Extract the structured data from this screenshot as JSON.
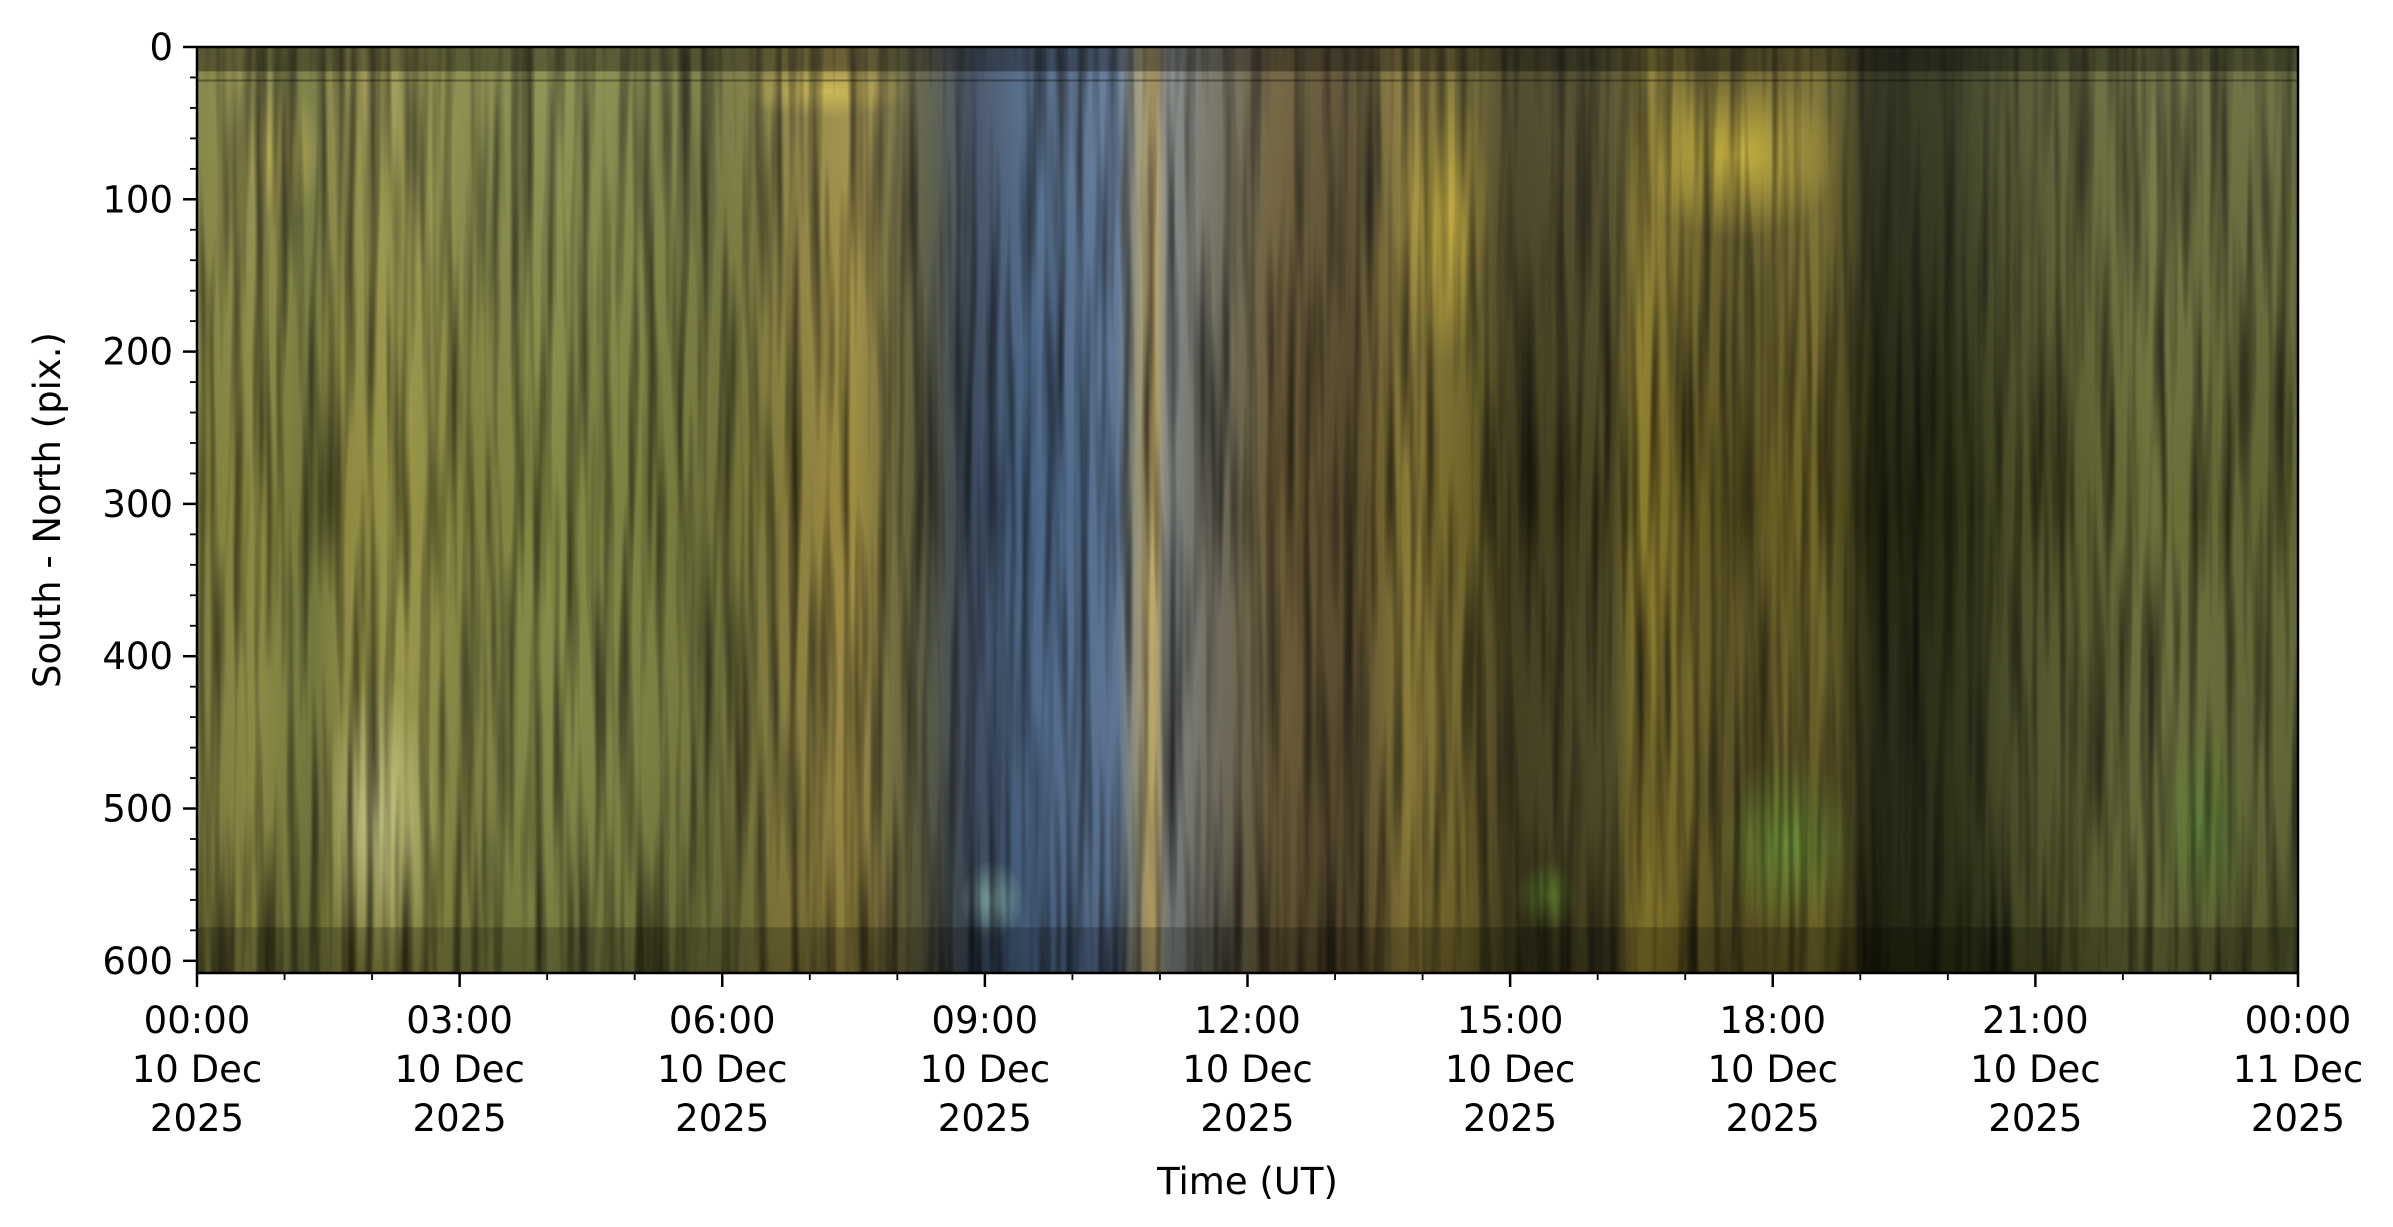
{
  "chart_data": {
    "type": "heatmap",
    "title": "",
    "xlabel": "Time (UT)",
    "ylabel": "South - North (pix.)",
    "x_range": [
      "2025-12-10T00:00",
      "2025-12-11T00:00"
    ],
    "ylim": [
      608,
      0
    ],
    "y_inverted": true,
    "grid": false,
    "x_ticks": [
      {
        "time": "2025-12-10T00:00",
        "line1": "00:00",
        "line2": "10 Dec",
        "line3": "2025"
      },
      {
        "time": "2025-12-10T03:00",
        "line1": "03:00",
        "line2": "10 Dec",
        "line3": "2025"
      },
      {
        "time": "2025-12-10T06:00",
        "line1": "06:00",
        "line2": "10 Dec",
        "line3": "2025"
      },
      {
        "time": "2025-12-10T09:00",
        "line1": "09:00",
        "line2": "10 Dec",
        "line3": "2025"
      },
      {
        "time": "2025-12-10T12:00",
        "line1": "12:00",
        "line2": "10 Dec",
        "line3": "2025"
      },
      {
        "time": "2025-12-10T15:00",
        "line1": "15:00",
        "line2": "10 Dec",
        "line3": "2025"
      },
      {
        "time": "2025-12-10T18:00",
        "line1": "18:00",
        "line2": "10 Dec",
        "line3": "2025"
      },
      {
        "time": "2025-12-10T21:00",
        "line1": "21:00",
        "line2": "10 Dec",
        "line3": "2025"
      },
      {
        "time": "2025-12-11T00:00",
        "line1": "00:00",
        "line2": "11 Dec",
        "line3": "2025"
      }
    ],
    "y_ticks": [
      0,
      100,
      200,
      300,
      400,
      500,
      600
    ],
    "color_bands": [
      {
        "start": "2025-12-10T00:00",
        "color": "#7d7d3c"
      },
      {
        "start": "2025-12-10T00:40",
        "color": "#8e8a42"
      },
      {
        "start": "2025-12-10T01:20",
        "color": "#6f7538"
      },
      {
        "start": "2025-12-10T01:40",
        "color": "#8c8840"
      },
      {
        "start": "2025-12-10T02:20",
        "color": "#9a9648"
      },
      {
        "start": "2025-12-10T03:10",
        "color": "#7f813f"
      },
      {
        "start": "2025-12-10T04:00",
        "color": "#858a45"
      },
      {
        "start": "2025-12-10T05:00",
        "color": "#7d8140"
      },
      {
        "start": "2025-12-10T06:00",
        "color": "#707238"
      },
      {
        "start": "2025-12-10T06:50",
        "color": "#8a7e3c"
      },
      {
        "start": "2025-12-10T07:30",
        "color": "#9e8c40"
      },
      {
        "start": "2025-12-10T08:10",
        "color": "#5f5d3a"
      },
      {
        "start": "2025-12-10T08:50",
        "color": "#39475a"
      },
      {
        "start": "2025-12-10T09:30",
        "color": "#4a6688"
      },
      {
        "start": "2025-12-10T10:30",
        "color": "#5b7393"
      },
      {
        "start": "2025-12-10T10:55",
        "color": "#bfa863"
      },
      {
        "start": "2025-12-10T11:05",
        "color": "#7f8583"
      },
      {
        "start": "2025-12-10T11:40",
        "color": "#6d6a5a"
      },
      {
        "start": "2025-12-10T12:20",
        "color": "#6a5a34"
      },
      {
        "start": "2025-12-10T13:10",
        "color": "#514428"
      },
      {
        "start": "2025-12-10T13:50",
        "color": "#8b7a35"
      },
      {
        "start": "2025-12-10T14:30",
        "color": "#6e6328"
      },
      {
        "start": "2025-12-10T15:00",
        "color": "#403b1c"
      },
      {
        "start": "2025-12-10T16:10",
        "color": "#4c4722"
      },
      {
        "start": "2025-12-10T16:30",
        "color": "#8d7d2a"
      },
      {
        "start": "2025-12-10T17:30",
        "color": "#5a5120"
      },
      {
        "start": "2025-12-10T18:30",
        "color": "#756a28"
      },
      {
        "start": "2025-12-10T19:10",
        "color": "#22240f"
      },
      {
        "start": "2025-12-10T20:00",
        "color": "#2c2f14"
      },
      {
        "start": "2025-12-10T20:40",
        "color": "#474a24"
      },
      {
        "start": "2025-12-10T21:40",
        "color": "#5f6230"
      },
      {
        "start": "2025-12-10T22:20",
        "color": "#6e713a"
      },
      {
        "start": "2025-12-10T23:20",
        "color": "#626633"
      }
    ],
    "highlights": [
      {
        "start": "2025-12-10T01:30",
        "end": "2025-12-10T02:40",
        "y_from": 420,
        "y_to": 600,
        "color": "#e7e7a0"
      },
      {
        "start": "2025-12-10T00:40",
        "end": "2025-12-10T01:20",
        "y_from": 30,
        "y_to": 110,
        "color": "#c9b54f"
      },
      {
        "start": "2025-12-10T06:20",
        "end": "2025-12-10T08:00",
        "y_from": 18,
        "y_to": 40,
        "color": "#d9c24a"
      },
      {
        "start": "2025-12-10T08:50",
        "end": "2025-12-10T09:20",
        "y_from": 540,
        "y_to": 580,
        "color": "#9fd3c4"
      },
      {
        "start": "2025-12-10T13:50",
        "end": "2025-12-10T14:40",
        "y_from": 20,
        "y_to": 200,
        "color": "#e0c43a"
      },
      {
        "start": "2025-12-10T16:30",
        "end": "2025-12-10T18:40",
        "y_from": 20,
        "y_to": 120,
        "color": "#e3c937"
      },
      {
        "start": "2025-12-10T17:30",
        "end": "2025-12-10T18:50",
        "y_from": 470,
        "y_to": 575,
        "color": "#6ea53a"
      },
      {
        "start": "2025-12-10T15:10",
        "end": "2025-12-10T15:40",
        "y_from": 540,
        "y_to": 575,
        "color": "#6a9a30"
      },
      {
        "start": "2025-12-10T22:30",
        "end": "2025-12-10T23:20",
        "y_from": 450,
        "y_to": 575,
        "color": "#5c8d34"
      }
    ]
  }
}
